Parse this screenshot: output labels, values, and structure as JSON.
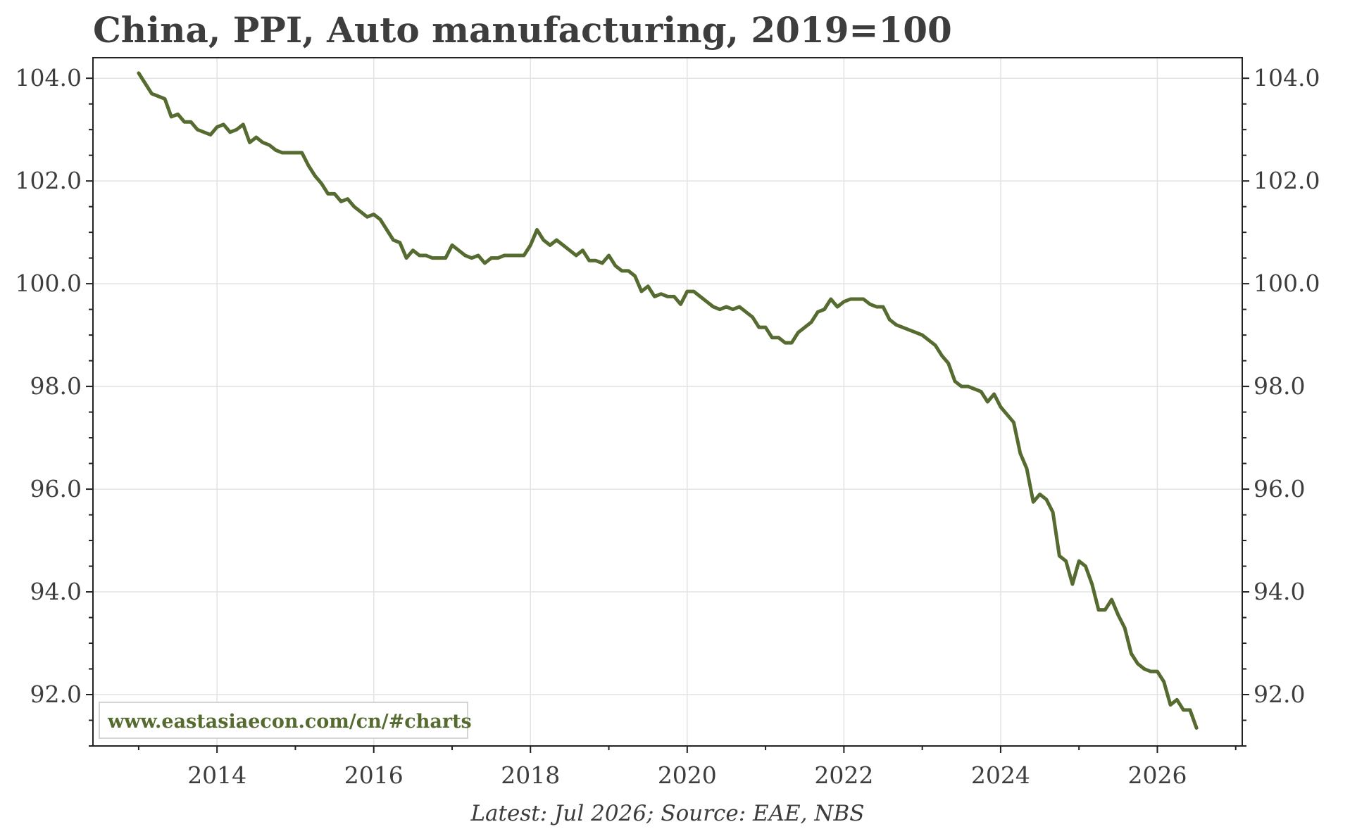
{
  "chart_data": {
    "type": "line",
    "title": "China, PPI, Auto manufacturing, 2019=100",
    "source_note": "Latest: Jul 2026; Source: EAE, NBS",
    "watermark": "www.eastasiaecon.com/cn/#charts",
    "xlabel": "",
    "ylabel": "",
    "xlim": [
      "2012-06",
      "2027-02"
    ],
    "ylim": [
      91.0,
      104.4
    ],
    "x_ticks": [
      "2014",
      "2016",
      "2018",
      "2020",
      "2022",
      "2024",
      "2026"
    ],
    "y_ticks": [
      "92.0",
      "94.0",
      "96.0",
      "98.0",
      "100.0",
      "102.0",
      "104.0"
    ],
    "y_axis_both_sides": true,
    "grid": true,
    "line_color": "#556b2f",
    "series": [
      {
        "name": "",
        "x": [
          "2013-01",
          "2013-02",
          "2013-03",
          "2013-04",
          "2013-05",
          "2013-06",
          "2013-07",
          "2013-08",
          "2013-09",
          "2013-10",
          "2013-11",
          "2013-12",
          "2014-01",
          "2014-02",
          "2014-03",
          "2014-04",
          "2014-05",
          "2014-06",
          "2014-07",
          "2014-08",
          "2014-09",
          "2014-10",
          "2014-11",
          "2014-12",
          "2015-01",
          "2015-02",
          "2015-03",
          "2015-04",
          "2015-05",
          "2015-06",
          "2015-07",
          "2015-08",
          "2015-09",
          "2015-10",
          "2015-11",
          "2015-12",
          "2016-01",
          "2016-02",
          "2016-03",
          "2016-04",
          "2016-05",
          "2016-06",
          "2016-07",
          "2016-08",
          "2016-09",
          "2016-10",
          "2016-11",
          "2016-12",
          "2017-01",
          "2017-02",
          "2017-03",
          "2017-04",
          "2017-05",
          "2017-06",
          "2017-07",
          "2017-08",
          "2017-09",
          "2017-10",
          "2017-11",
          "2017-12",
          "2018-01",
          "2018-02",
          "2018-03",
          "2018-04",
          "2018-05",
          "2018-06",
          "2018-07",
          "2018-08",
          "2018-09",
          "2018-10",
          "2018-11",
          "2018-12",
          "2019-01",
          "2019-02",
          "2019-03",
          "2019-04",
          "2019-05",
          "2019-06",
          "2019-07",
          "2019-08",
          "2019-09",
          "2019-10",
          "2019-11",
          "2019-12",
          "2020-01",
          "2020-02",
          "2020-03",
          "2020-04",
          "2020-05",
          "2020-06",
          "2020-07",
          "2020-08",
          "2020-09",
          "2020-10",
          "2020-11",
          "2020-12",
          "2021-01",
          "2021-02",
          "2021-03",
          "2021-04",
          "2021-05",
          "2021-06",
          "2021-07",
          "2021-08",
          "2021-09",
          "2021-10",
          "2021-11",
          "2021-12",
          "2022-01",
          "2022-02",
          "2022-03",
          "2022-04",
          "2022-05",
          "2022-06",
          "2022-07",
          "2022-08",
          "2022-09",
          "2022-10",
          "2022-11",
          "2022-12",
          "2023-01",
          "2023-02",
          "2023-03",
          "2023-04",
          "2023-05",
          "2023-06",
          "2023-07",
          "2023-08",
          "2023-09",
          "2023-10",
          "2023-11",
          "2023-12",
          "2024-01",
          "2024-02",
          "2024-03",
          "2024-04",
          "2024-05",
          "2024-06",
          "2024-07",
          "2024-08",
          "2024-09",
          "2024-10",
          "2024-11",
          "2024-12",
          "2025-01",
          "2025-02",
          "2025-03",
          "2025-04",
          "2025-05",
          "2025-06",
          "2025-07",
          "2025-08",
          "2025-09",
          "2025-10",
          "2025-11",
          "2025-12",
          "2026-01",
          "2026-02",
          "2026-03",
          "2026-04",
          "2026-05",
          "2026-06",
          "2026-07"
        ],
        "values": [
          104.1,
          103.9,
          103.7,
          103.65,
          103.6,
          103.25,
          103.3,
          103.15,
          103.15,
          103.0,
          102.95,
          102.9,
          103.05,
          103.1,
          102.95,
          103.0,
          103.1,
          102.75,
          102.85,
          102.75,
          102.7,
          102.6,
          102.55,
          102.55,
          102.55,
          102.55,
          102.3,
          102.1,
          101.95,
          101.75,
          101.75,
          101.6,
          101.65,
          101.5,
          101.4,
          101.3,
          101.35,
          101.25,
          101.05,
          100.85,
          100.8,
          100.5,
          100.65,
          100.55,
          100.55,
          100.5,
          100.5,
          100.5,
          100.75,
          100.65,
          100.55,
          100.5,
          100.55,
          100.4,
          100.5,
          100.5,
          100.55,
          100.55,
          100.55,
          100.55,
          100.75,
          101.05,
          100.85,
          100.75,
          100.85,
          100.75,
          100.65,
          100.55,
          100.65,
          100.45,
          100.45,
          100.4,
          100.55,
          100.35,
          100.25,
          100.25,
          100.15,
          99.85,
          99.95,
          99.75,
          99.8,
          99.75,
          99.75,
          99.6,
          99.85,
          99.85,
          99.75,
          99.65,
          99.55,
          99.5,
          99.55,
          99.5,
          99.55,
          99.45,
          99.35,
          99.15,
          99.15,
          98.95,
          98.95,
          98.85,
          98.85,
          99.05,
          99.15,
          99.25,
          99.45,
          99.5,
          99.7,
          99.55,
          99.65,
          99.7,
          99.7,
          99.7,
          99.6,
          99.55,
          99.55,
          99.3,
          99.2,
          99.15,
          99.1,
          99.05,
          99.0,
          98.9,
          98.8,
          98.6,
          98.45,
          98.1,
          98.0,
          98.0,
          97.95,
          97.9,
          97.7,
          97.85,
          97.6,
          97.45,
          97.3,
          96.7,
          96.4,
          95.75,
          95.9,
          95.8,
          95.55,
          94.7,
          94.6,
          94.15,
          94.6,
          94.5,
          94.15,
          93.65,
          93.65,
          93.85,
          93.55,
          93.3,
          92.8,
          92.6,
          92.5,
          92.45,
          92.45,
          92.25,
          91.8,
          91.9,
          91.7,
          91.7,
          91.35
        ]
      }
    ]
  }
}
